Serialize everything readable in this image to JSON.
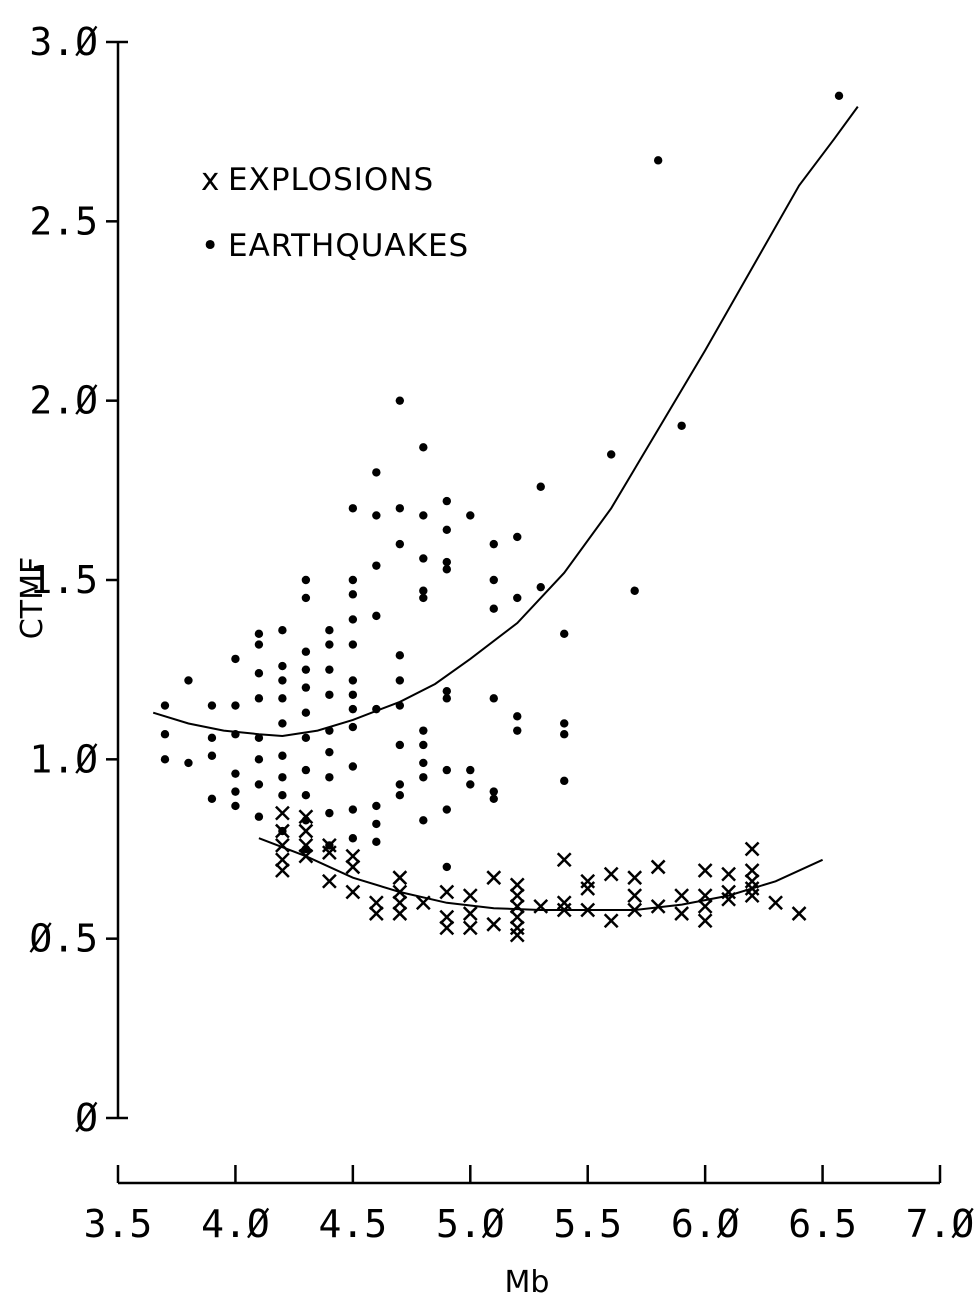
{
  "chart_data": {
    "type": "scatter",
    "title": "",
    "xlabel": "Mb",
    "ylabel": "CTMF",
    "xlim": [
      3.5,
      7.0
    ],
    "ylim": [
      0,
      3.0
    ],
    "x_ticks": [
      "3.5",
      "4.Ø",
      "4.5",
      "5.Ø",
      "5.5",
      "6.Ø",
      "6.5",
      "7.Ø"
    ],
    "x_tick_values": [
      3.5,
      4.0,
      4.5,
      5.0,
      5.5,
      6.0,
      6.5,
      7.0
    ],
    "y_ticks": [
      "Ø",
      "Ø.5",
      "1.Ø",
      "1.5",
      "2.Ø",
      "2.5",
      "3.Ø"
    ],
    "y_tick_values": [
      0,
      0.5,
      1.0,
      1.5,
      2.0,
      2.5,
      3.0
    ],
    "grid": false,
    "legend_position": "top-left",
    "legend": [
      {
        "marker": "x",
        "label": "EXPLOSIONS"
      },
      {
        "marker": "•",
        "label": "EARTHQUAKES"
      }
    ],
    "series": [
      {
        "name": "EARTHQUAKES",
        "marker": "dot",
        "points": [
          [
            3.7,
            1.15
          ],
          [
            3.7,
            1.07
          ],
          [
            3.7,
            1.0
          ],
          [
            3.8,
            1.22
          ],
          [
            3.8,
            0.99
          ],
          [
            3.9,
            1.15
          ],
          [
            3.9,
            1.06
          ],
          [
            3.9,
            1.01
          ],
          [
            3.9,
            0.89
          ],
          [
            4.0,
            1.28
          ],
          [
            4.0,
            1.15
          ],
          [
            4.0,
            1.07
          ],
          [
            4.0,
            0.96
          ],
          [
            4.0,
            0.91
          ],
          [
            4.0,
            0.87
          ],
          [
            4.1,
            1.35
          ],
          [
            4.1,
            1.32
          ],
          [
            4.1,
            1.24
          ],
          [
            4.1,
            1.17
          ],
          [
            4.1,
            1.06
          ],
          [
            4.1,
            1.0
          ],
          [
            4.1,
            0.93
          ],
          [
            4.1,
            0.84
          ],
          [
            4.2,
            1.36
          ],
          [
            4.2,
            1.26
          ],
          [
            4.2,
            1.22
          ],
          [
            4.2,
            1.17
          ],
          [
            4.2,
            1.1
          ],
          [
            4.2,
            1.01
          ],
          [
            4.2,
            0.95
          ],
          [
            4.2,
            0.9
          ],
          [
            4.2,
            0.8
          ],
          [
            4.3,
            1.5
          ],
          [
            4.3,
            1.45
          ],
          [
            4.3,
            1.3
          ],
          [
            4.3,
            1.25
          ],
          [
            4.3,
            1.2
          ],
          [
            4.3,
            1.13
          ],
          [
            4.3,
            1.06
          ],
          [
            4.3,
            0.97
          ],
          [
            4.3,
            0.9
          ],
          [
            4.3,
            0.83
          ],
          [
            4.3,
            0.75
          ],
          [
            4.4,
            1.36
          ],
          [
            4.4,
            1.32
          ],
          [
            4.4,
            1.25
          ],
          [
            4.4,
            1.18
          ],
          [
            4.4,
            1.08
          ],
          [
            4.4,
            1.02
          ],
          [
            4.4,
            0.95
          ],
          [
            4.4,
            0.85
          ],
          [
            4.4,
            0.76
          ],
          [
            4.5,
            1.7
          ],
          [
            4.5,
            1.5
          ],
          [
            4.5,
            1.46
          ],
          [
            4.5,
            1.39
          ],
          [
            4.5,
            1.32
          ],
          [
            4.5,
            1.22
          ],
          [
            4.5,
            1.18
          ],
          [
            4.5,
            1.14
          ],
          [
            4.5,
            1.09
          ],
          [
            4.5,
            0.98
          ],
          [
            4.5,
            0.86
          ],
          [
            4.5,
            0.78
          ],
          [
            4.6,
            1.8
          ],
          [
            4.6,
            1.68
          ],
          [
            4.6,
            1.54
          ],
          [
            4.6,
            1.4
          ],
          [
            4.6,
            1.14
          ],
          [
            4.6,
            0.87
          ],
          [
            4.6,
            0.82
          ],
          [
            4.6,
            0.77
          ],
          [
            4.7,
            2.0
          ],
          [
            4.7,
            1.7
          ],
          [
            4.7,
            1.6
          ],
          [
            4.7,
            1.29
          ],
          [
            4.7,
            1.22
          ],
          [
            4.7,
            1.15
          ],
          [
            4.7,
            1.04
          ],
          [
            4.7,
            0.93
          ],
          [
            4.7,
            0.9
          ],
          [
            4.8,
            1.87
          ],
          [
            4.8,
            1.68
          ],
          [
            4.8,
            1.56
          ],
          [
            4.8,
            1.47
          ],
          [
            4.8,
            1.45
          ],
          [
            4.8,
            1.08
          ],
          [
            4.8,
            1.04
          ],
          [
            4.8,
            0.99
          ],
          [
            4.8,
            0.95
          ],
          [
            4.8,
            0.83
          ],
          [
            4.9,
            1.72
          ],
          [
            4.9,
            1.64
          ],
          [
            4.9,
            1.55
          ],
          [
            4.9,
            1.53
          ],
          [
            4.9,
            1.19
          ],
          [
            4.9,
            1.17
          ],
          [
            4.9,
            0.97
          ],
          [
            4.9,
            0.86
          ],
          [
            4.9,
            0.7
          ],
          [
            5.0,
            1.68
          ],
          [
            5.0,
            0.97
          ],
          [
            5.0,
            0.93
          ],
          [
            5.1,
            1.6
          ],
          [
            5.1,
            1.5
          ],
          [
            5.1,
            1.42
          ],
          [
            5.1,
            1.17
          ],
          [
            5.1,
            0.91
          ],
          [
            5.1,
            0.89
          ],
          [
            5.2,
            1.62
          ],
          [
            5.2,
            1.45
          ],
          [
            5.2,
            1.12
          ],
          [
            5.2,
            1.08
          ],
          [
            5.3,
            1.76
          ],
          [
            5.3,
            1.48
          ],
          [
            5.4,
            1.35
          ],
          [
            5.4,
            1.1
          ],
          [
            5.4,
            1.07
          ],
          [
            5.4,
            0.94
          ],
          [
            5.6,
            1.85
          ],
          [
            5.7,
            1.47
          ],
          [
            5.8,
            2.67
          ],
          [
            5.9,
            1.93
          ],
          [
            6.57,
            2.85
          ]
        ]
      },
      {
        "name": "EXPLOSIONS",
        "marker": "x",
        "points": [
          [
            4.2,
            0.85
          ],
          [
            4.2,
            0.8
          ],
          [
            4.2,
            0.76
          ],
          [
            4.2,
            0.72
          ],
          [
            4.2,
            0.69
          ],
          [
            4.3,
            0.84
          ],
          [
            4.3,
            0.8
          ],
          [
            4.3,
            0.76
          ],
          [
            4.3,
            0.73
          ],
          [
            4.4,
            0.76
          ],
          [
            4.4,
            0.74
          ],
          [
            4.4,
            0.66
          ],
          [
            4.5,
            0.73
          ],
          [
            4.5,
            0.7
          ],
          [
            4.5,
            0.63
          ],
          [
            4.6,
            0.6
          ],
          [
            4.6,
            0.57
          ],
          [
            4.7,
            0.67
          ],
          [
            4.7,
            0.63
          ],
          [
            4.7,
            0.6
          ],
          [
            4.7,
            0.57
          ],
          [
            4.8,
            0.6
          ],
          [
            4.9,
            0.63
          ],
          [
            4.9,
            0.56
          ],
          [
            4.9,
            0.53
          ],
          [
            5.0,
            0.62
          ],
          [
            5.0,
            0.57
          ],
          [
            5.0,
            0.53
          ],
          [
            5.1,
            0.67
          ],
          [
            5.1,
            0.54
          ],
          [
            5.2,
            0.65
          ],
          [
            5.2,
            0.62
          ],
          [
            5.2,
            0.59
          ],
          [
            5.2,
            0.56
          ],
          [
            5.2,
            0.53
          ],
          [
            5.2,
            0.51
          ],
          [
            5.3,
            0.59
          ],
          [
            5.4,
            0.72
          ],
          [
            5.4,
            0.6
          ],
          [
            5.4,
            0.58
          ],
          [
            5.5,
            0.66
          ],
          [
            5.5,
            0.64
          ],
          [
            5.5,
            0.58
          ],
          [
            5.6,
            0.68
          ],
          [
            5.6,
            0.55
          ],
          [
            5.7,
            0.67
          ],
          [
            5.7,
            0.62
          ],
          [
            5.7,
            0.58
          ],
          [
            5.8,
            0.7
          ],
          [
            5.8,
            0.59
          ],
          [
            5.9,
            0.62
          ],
          [
            5.9,
            0.57
          ],
          [
            6.0,
            0.69
          ],
          [
            6.0,
            0.62
          ],
          [
            6.0,
            0.59
          ],
          [
            6.0,
            0.55
          ],
          [
            6.1,
            0.68
          ],
          [
            6.1,
            0.63
          ],
          [
            6.1,
            0.61
          ],
          [
            6.2,
            0.75
          ],
          [
            6.2,
            0.69
          ],
          [
            6.2,
            0.66
          ],
          [
            6.2,
            0.64
          ],
          [
            6.2,
            0.62
          ],
          [
            6.3,
            0.6
          ],
          [
            6.4,
            0.57
          ]
        ]
      },
      {
        "name": "",
        "type": "line",
        "points": [
          [
            3.65,
            1.13
          ],
          [
            3.8,
            1.1
          ],
          [
            3.95,
            1.08
          ],
          [
            4.1,
            1.07
          ],
          [
            4.2,
            1.065
          ],
          [
            4.35,
            1.08
          ],
          [
            4.5,
            1.11
          ],
          [
            4.7,
            1.16
          ],
          [
            4.85,
            1.21
          ],
          [
            5.0,
            1.28
          ],
          [
            5.2,
            1.38
          ],
          [
            5.4,
            1.52
          ],
          [
            5.6,
            1.7
          ],
          [
            5.8,
            1.92
          ],
          [
            6.0,
            2.14
          ],
          [
            6.2,
            2.37
          ],
          [
            6.4,
            2.6
          ],
          [
            6.55,
            2.73
          ],
          [
            6.65,
            2.82
          ]
        ]
      },
      {
        "name": "",
        "type": "line",
        "points": [
          [
            4.1,
            0.78
          ],
          [
            4.3,
            0.73
          ],
          [
            4.5,
            0.67
          ],
          [
            4.7,
            0.63
          ],
          [
            4.9,
            0.6
          ],
          [
            5.1,
            0.585
          ],
          [
            5.3,
            0.58
          ],
          [
            5.5,
            0.58
          ],
          [
            5.7,
            0.58
          ],
          [
            5.9,
            0.595
          ],
          [
            6.1,
            0.62
          ],
          [
            6.3,
            0.66
          ],
          [
            6.5,
            0.72
          ]
        ]
      }
    ]
  }
}
